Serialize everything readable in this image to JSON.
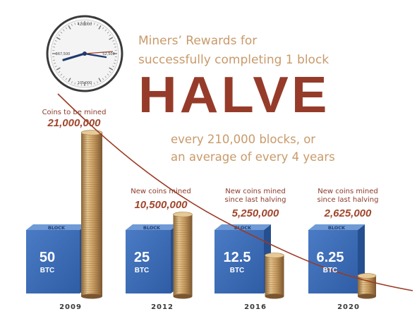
{
  "headline": {
    "line1": "Miners’ Rewards for",
    "line2": "successfully completing 1 block",
    "big": "HALVE",
    "line3": "every 210,000 blocks, or",
    "line4": "an average of every 4 years"
  },
  "clock": {
    "top_label": "420,000",
    "left_label": "367,500",
    "bottom_label": "105,000",
    "right_label": "52,500"
  },
  "chart_data": {
    "type": "bar",
    "categories": [
      "2009",
      "2012",
      "2016",
      "2020"
    ],
    "series": [
      {
        "values": [
          50,
          25,
          12.5,
          6.25
        ]
      },
      {
        "values": [
          21000000,
          10500000,
          5250000,
          2625000
        ]
      }
    ],
    "reward_labels": [
      "50",
      "25",
      "12.5",
      "6.25"
    ],
    "reward_unit": "BTC",
    "block_label": "BLOCK",
    "captions": [
      "Coins to be mined",
      "New coins mined",
      "New coins mined since last halving",
      "New coins mined since last halving"
    ],
    "amount_labels": [
      "21,000,000",
      "10,500,000",
      "5,250,000",
      "2,625,000"
    ],
    "colors": {
      "cube": "#3f6db4",
      "coin": "#c8a067",
      "curve": "#9b3a24",
      "accent": "#963b2a"
    }
  }
}
